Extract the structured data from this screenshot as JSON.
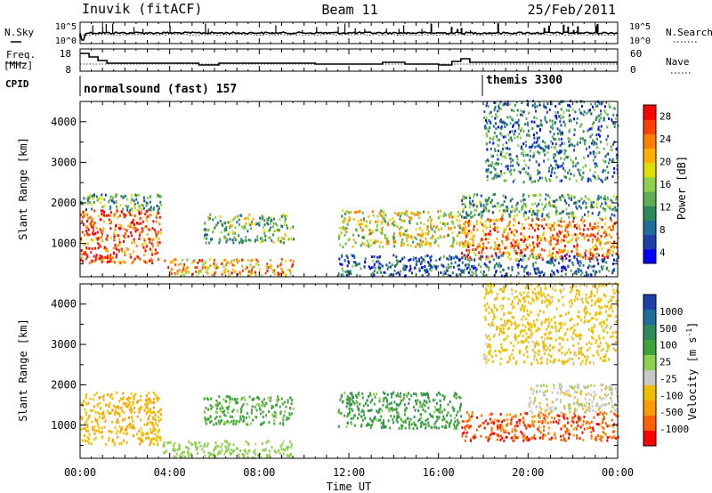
{
  "header": {
    "station": "Inuvik (fitACF)",
    "beam": "Beam 11",
    "date": "25/Feb/2011"
  },
  "noise_panel": {
    "left_label": "N.Sky",
    "right_label": "N.Search",
    "left_ticks": [
      "10^5",
      "10^0"
    ],
    "right_ticks": [
      "10^5",
      "10^0"
    ]
  },
  "freq_panel": {
    "left_label_1": "Freq.",
    "left_label_2": "[MHz]",
    "right_label": "Nave",
    "left_ticks": [
      "18",
      "8"
    ],
    "right_ticks": [
      "60",
      "0"
    ]
  },
  "cpid_panel": {
    "label": "CPID",
    "modes": [
      {
        "name": "normalsound (fast) 157",
        "start_hour": 0
      },
      {
        "name": "themis 3300",
        "start_hour": 18.0
      }
    ]
  },
  "axes": {
    "ylabel": "Slant Range [km]",
    "xlabel": "Time UT",
    "x_ticks": [
      "00:00",
      "04:00",
      "08:00",
      "12:00",
      "16:00",
      "20:00",
      "00:00"
    ],
    "y_ticks": [
      "1000",
      "2000",
      "3000",
      "4000"
    ]
  },
  "colorbars": {
    "power": {
      "label": "Power [dB]",
      "ticks": [
        "4",
        "8",
        "12",
        "16",
        "20",
        "24",
        "28"
      ],
      "colors": [
        "#0000ff",
        "#1c3fa8",
        "#1f6e9a",
        "#2e8b57",
        "#5fae56",
        "#8fd14f",
        "#e0e000",
        "#ffb000",
        "#ff7f00",
        "#ff4000",
        "#ff0000"
      ]
    },
    "velocity": {
      "label_main": "Velocity [m s",
      "label_sup": "-1",
      "label_end": "]",
      "ticks": [
        "1000",
        "500",
        "100",
        "25",
        "-25",
        "-100",
        "-500",
        "-1000"
      ],
      "colors": [
        "#1c3fa8",
        "#1f6e9a",
        "#2e8b57",
        "#41a33c",
        "#8fd14f",
        "#c8c8c8",
        "#f0c000",
        "#ff9a00",
        "#ff6000",
        "#ff0000"
      ]
    }
  },
  "chart_data": {
    "type": "heatmap",
    "x_range_hours": [
      0,
      24
    ],
    "y_range_km": [
      180,
      4500
    ],
    "panels": [
      {
        "quantity": "Power",
        "unit": "dB",
        "scatter_regions": [
          {
            "t0": 0.0,
            "t1": 3.6,
            "r0": 500,
            "r1": 1800,
            "value": 26
          },
          {
            "t0": 0.0,
            "t1": 3.6,
            "r0": 1800,
            "r1": 2200,
            "value": 12
          },
          {
            "t0": 3.6,
            "t1": 9.5,
            "r0": 180,
            "r1": 600,
            "value": 22
          },
          {
            "t0": 5.5,
            "t1": 9.5,
            "r0": 1000,
            "r1": 1700,
            "value": 14
          },
          {
            "t0": 11.5,
            "t1": 17.0,
            "r0": 900,
            "r1": 1800,
            "value": 18
          },
          {
            "t0": 11.5,
            "t1": 24.0,
            "r0": 180,
            "r1": 700,
            "value": 8
          },
          {
            "t0": 17.0,
            "t1": 24.0,
            "r0": 600,
            "r1": 1600,
            "value": 24
          },
          {
            "t0": 17.0,
            "t1": 24.0,
            "r0": 1600,
            "r1": 2200,
            "value": 12
          },
          {
            "t0": 18.0,
            "t1": 24.0,
            "r0": 2500,
            "r1": 4500,
            "value": 10
          }
        ]
      },
      {
        "quantity": "Velocity",
        "unit": "m s-1",
        "scatter_regions": [
          {
            "t0": 0.0,
            "t1": 3.6,
            "r0": 500,
            "r1": 1800,
            "value": -80
          },
          {
            "t0": 3.6,
            "t1": 9.5,
            "r0": 180,
            "r1": 600,
            "value": 60
          },
          {
            "t0": 5.5,
            "t1": 9.5,
            "r0": 1000,
            "r1": 1700,
            "value": 150
          },
          {
            "t0": 11.5,
            "t1": 17.0,
            "r0": 900,
            "r1": 1800,
            "value": 200
          },
          {
            "t0": 17.0,
            "t1": 24.0,
            "r0": 600,
            "r1": 1300,
            "value": -400
          },
          {
            "t0": 20.0,
            "t1": 24.0,
            "r0": 1300,
            "r1": 2000,
            "value": 0
          },
          {
            "t0": 18.0,
            "t1": 24.0,
            "r0": 2500,
            "r1": 4500,
            "value": -60
          }
        ]
      }
    ]
  }
}
